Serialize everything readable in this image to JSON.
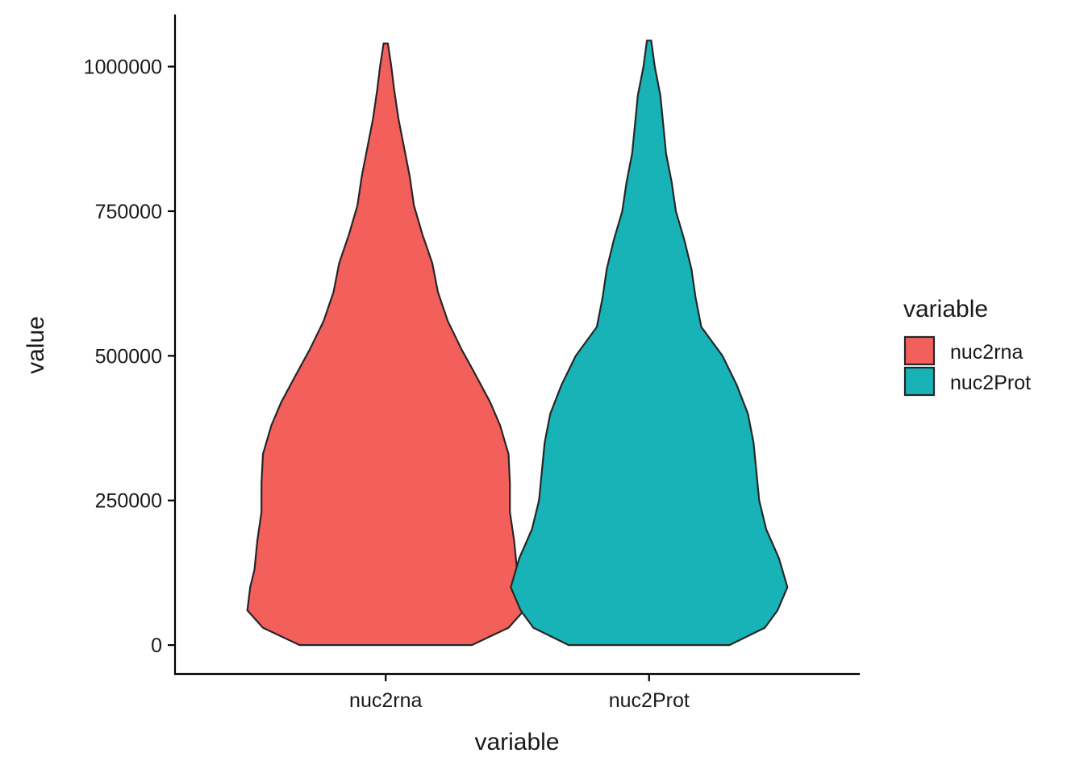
{
  "chart_data": {
    "type": "violin",
    "xlabel": "variable",
    "ylabel": "value",
    "ylim": [
      -50000,
      1090000
    ],
    "y_ticks": [
      0,
      250000,
      500000,
      750000,
      1000000
    ],
    "y_tick_labels": [
      "0",
      "250000",
      "500000",
      "750000",
      "1000000"
    ],
    "categories": [
      "nuc2rna",
      "nuc2Prot"
    ],
    "legend": {
      "title": "variable",
      "position": "right",
      "entries": [
        "nuc2rna",
        "nuc2Prot"
      ]
    },
    "grid": false,
    "series": [
      {
        "name": "nuc2rna",
        "color": "#F3605C",
        "min": 0,
        "max": 1040000,
        "profile": [
          [
            0,
            0.61
          ],
          [
            30000,
            0.87
          ],
          [
            60000,
            0.98
          ],
          [
            100000,
            0.96
          ],
          [
            130000,
            0.93
          ],
          [
            180000,
            0.91
          ],
          [
            230000,
            0.88
          ],
          [
            280000,
            0.88
          ],
          [
            330000,
            0.87
          ],
          [
            380000,
            0.81
          ],
          [
            420000,
            0.74
          ],
          [
            470000,
            0.63
          ],
          [
            510000,
            0.54
          ],
          [
            560000,
            0.44
          ],
          [
            610000,
            0.37
          ],
          [
            660000,
            0.33
          ],
          [
            710000,
            0.26
          ],
          [
            760000,
            0.2
          ],
          [
            810000,
            0.17
          ],
          [
            860000,
            0.13
          ],
          [
            910000,
            0.09
          ],
          [
            960000,
            0.06
          ],
          [
            1000000,
            0.04
          ],
          [
            1040000,
            0.015
          ]
        ]
      },
      {
        "name": "nuc2Prot",
        "color": "#18B3B7",
        "min": 0,
        "max": 1045000,
        "profile": [
          [
            0,
            0.57
          ],
          [
            30000,
            0.82
          ],
          [
            60000,
            0.91
          ],
          [
            100000,
            0.98
          ],
          [
            150000,
            0.92
          ],
          [
            200000,
            0.83
          ],
          [
            250000,
            0.78
          ],
          [
            300000,
            0.76
          ],
          [
            350000,
            0.74
          ],
          [
            400000,
            0.7
          ],
          [
            450000,
            0.62
          ],
          [
            500000,
            0.52
          ],
          [
            550000,
            0.37
          ],
          [
            600000,
            0.33
          ],
          [
            650000,
            0.3
          ],
          [
            700000,
            0.25
          ],
          [
            750000,
            0.19
          ],
          [
            800000,
            0.16
          ],
          [
            850000,
            0.12
          ],
          [
            900000,
            0.1
          ],
          [
            950000,
            0.08
          ],
          [
            1000000,
            0.04
          ],
          [
            1045000,
            0.015
          ]
        ]
      }
    ]
  }
}
